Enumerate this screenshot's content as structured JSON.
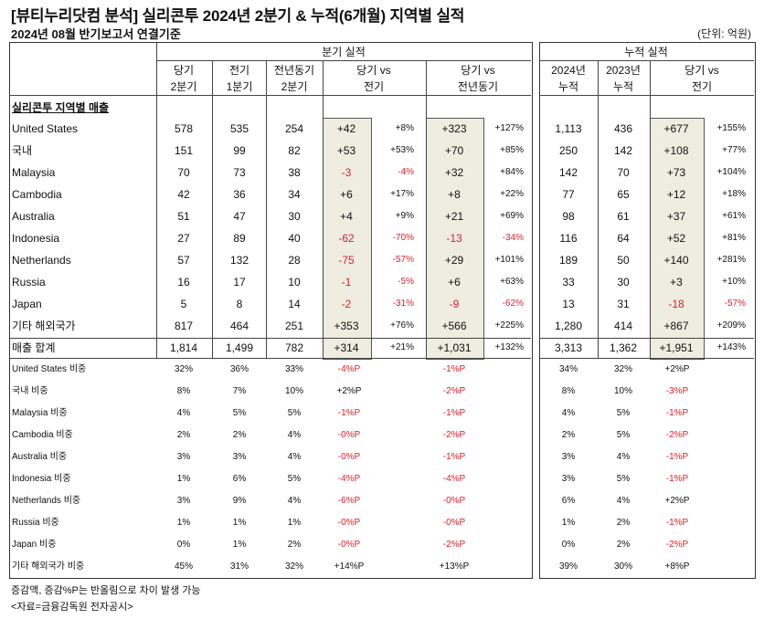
{
  "title": "[뷰티누리닷컴 분석] 실리콘투 2024년 2분기 & 누적(6개월) 지역별 실적",
  "subtitle": "2024년 08월 반기보고서 연결기준",
  "unit": "(단위: 억원)",
  "quarter_header": "분기 실적",
  "cumulative_header": "누적 실적",
  "col_headers": {
    "cur_q": [
      "당기",
      "2분기"
    ],
    "prev_q": [
      "전기",
      "1분기"
    ],
    "yoy_q": [
      "전년동기",
      "2분기"
    ],
    "vs_prev": [
      "당기 vs",
      "전기"
    ],
    "vs_yoy": [
      "당기 vs",
      "전년동기"
    ],
    "y2024": [
      "2024년",
      "누적"
    ],
    "y2023": [
      "2023년",
      "누적"
    ],
    "vs_cum": [
      "당기 vs",
      "전기"
    ]
  },
  "section_label": "실리콘투 지역별 매출",
  "sales_rows": [
    {
      "name": "United States",
      "q2": "578",
      "q1": "535",
      "pq2": "254",
      "d1": "+42",
      "p1": "+8%",
      "d2": "+323",
      "p2": "+127%",
      "c24": "1,113",
      "c23": "436",
      "d3": "+677",
      "p3": "+155%"
    },
    {
      "name": "국내",
      "q2": "151",
      "q1": "99",
      "pq2": "82",
      "d1": "+53",
      "p1": "+53%",
      "d2": "+70",
      "p2": "+85%",
      "c24": "250",
      "c23": "142",
      "d3": "+108",
      "p3": "+77%"
    },
    {
      "name": "Malaysia",
      "q2": "70",
      "q1": "73",
      "pq2": "38",
      "d1": "-3",
      "p1": "-4%",
      "d2": "+32",
      "p2": "+84%",
      "c24": "142",
      "c23": "70",
      "d3": "+73",
      "p3": "+104%"
    },
    {
      "name": "Cambodia",
      "q2": "42",
      "q1": "36",
      "pq2": "34",
      "d1": "+6",
      "p1": "+17%",
      "d2": "+8",
      "p2": "+22%",
      "c24": "77",
      "c23": "65",
      "d3": "+12",
      "p3": "+18%"
    },
    {
      "name": "Australia",
      "q2": "51",
      "q1": "47",
      "pq2": "30",
      "d1": "+4",
      "p1": "+9%",
      "d2": "+21",
      "p2": "+69%",
      "c24": "98",
      "c23": "61",
      "d3": "+37",
      "p3": "+61%"
    },
    {
      "name": "Indonesia",
      "q2": "27",
      "q1": "89",
      "pq2": "40",
      "d1": "-62",
      "p1": "-70%",
      "d2": "-13",
      "p2": "-34%",
      "c24": "116",
      "c23": "64",
      "d3": "+52",
      "p3": "+81%"
    },
    {
      "name": "Netherlands",
      "q2": "57",
      "q1": "132",
      "pq2": "28",
      "d1": "-75",
      "p1": "-57%",
      "d2": "+29",
      "p2": "+101%",
      "c24": "189",
      "c23": "50",
      "d3": "+140",
      "p3": "+281%"
    },
    {
      "name": "Russia",
      "q2": "16",
      "q1": "17",
      "pq2": "10",
      "d1": "-1",
      "p1": "-5%",
      "d2": "+6",
      "p2": "+63%",
      "c24": "33",
      "c23": "30",
      "d3": "+3",
      "p3": "+10%"
    },
    {
      "name": "Japan",
      "q2": "5",
      "q1": "8",
      "pq2": "14",
      "d1": "-2",
      "p1": "-31%",
      "d2": "-9",
      "p2": "-62%",
      "c24": "13",
      "c23": "31",
      "d3": "-18",
      "p3": "-57%"
    },
    {
      "name": "기타 해외국가",
      "q2": "817",
      "q1": "464",
      "pq2": "251",
      "d1": "+353",
      "p1": "+76%",
      "d2": "+566",
      "p2": "+225%",
      "c24": "1,280",
      "c23": "414",
      "d3": "+867",
      "p3": "+209%"
    },
    {
      "name": "매출 합계",
      "q2": "1,814",
      "q1": "1,499",
      "pq2": "782",
      "d1": "+314",
      "p1": "+21%",
      "d2": "+1,031",
      "p2": "+132%",
      "c24": "3,313",
      "c23": "1,362",
      "d3": "+1,951",
      "p3": "+143%"
    }
  ],
  "share_rows": [
    {
      "name": "United States 비중",
      "q2": "32%",
      "q1": "36%",
      "pq2": "33%",
      "d1": "-4%P",
      "d2": "-1%P",
      "c24": "34%",
      "c23": "32%",
      "d3": "+2%P"
    },
    {
      "name": "국내 비중",
      "q2": "8%",
      "q1": "7%",
      "pq2": "10%",
      "d1": "+2%P",
      "d2": "-2%P",
      "c24": "8%",
      "c23": "10%",
      "d3": "-3%P"
    },
    {
      "name": "Malaysia 비중",
      "q2": "4%",
      "q1": "5%",
      "pq2": "5%",
      "d1": "-1%P",
      "d2": "-1%P",
      "c24": "4%",
      "c23": "5%",
      "d3": "-1%P"
    },
    {
      "name": "Cambodia 비중",
      "q2": "2%",
      "q1": "2%",
      "pq2": "4%",
      "d1": "-0%P",
      "d2": "-2%P",
      "c24": "2%",
      "c23": "5%",
      "d3": "-2%P"
    },
    {
      "name": "Australia 비중",
      "q2": "3%",
      "q1": "3%",
      "pq2": "4%",
      "d1": "-0%P",
      "d2": "-1%P",
      "c24": "3%",
      "c23": "4%",
      "d3": "-1%P"
    },
    {
      "name": "Indonesia 비중",
      "q2": "1%",
      "q1": "6%",
      "pq2": "5%",
      "d1": "-4%P",
      "d2": "-4%P",
      "c24": "3%",
      "c23": "5%",
      "d3": "-1%P"
    },
    {
      "name": "Netherlands 비중",
      "q2": "3%",
      "q1": "9%",
      "pq2": "4%",
      "d1": "-6%P",
      "d2": "-0%P",
      "c24": "6%",
      "c23": "4%",
      "d3": "+2%P"
    },
    {
      "name": "Russia 비중",
      "q2": "1%",
      "q1": "1%",
      "pq2": "1%",
      "d1": "-0%P",
      "d2": "-0%P",
      "c24": "1%",
      "c23": "2%",
      "d3": "-1%P"
    },
    {
      "name": "Japan 비중",
      "q2": "0%",
      "q1": "1%",
      "pq2": "2%",
      "d1": "-0%P",
      "d2": "-2%P",
      "c24": "0%",
      "c23": "2%",
      "d3": "-2%P"
    },
    {
      "name": "기타 해외국가 비중",
      "q2": "45%",
      "q1": "31%",
      "pq2": "32%",
      "d1": "+14%P",
      "d2": "+13%P",
      "c24": "39%",
      "c23": "30%",
      "d3": "+8%P"
    }
  ],
  "footnotes": [
    "증감액, 증감%P는 반올림으로 차이 발생 가능",
    "<자료=금융감독원 전자공시>"
  ],
  "colors": {
    "negative": "#e0202a",
    "highlight": "#efece0"
  }
}
